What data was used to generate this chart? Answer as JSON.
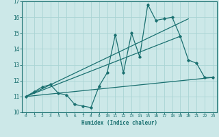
{
  "xlabel": "Humidex (Indice chaleur)",
  "bg_color": "#cce8e8",
  "line_color": "#1a7070",
  "grid_color": "#aad4d4",
  "xlim": [
    -0.5,
    23.5
  ],
  "ylim": [
    10,
    17
  ],
  "xticks": [
    0,
    1,
    2,
    3,
    4,
    5,
    6,
    7,
    8,
    9,
    10,
    11,
    12,
    13,
    14,
    15,
    16,
    17,
    18,
    19,
    20,
    21,
    22,
    23
  ],
  "yticks": [
    10,
    11,
    12,
    13,
    14,
    15,
    16,
    17
  ],
  "curve_x": [
    0,
    1,
    2,
    3,
    4,
    5,
    6,
    7,
    8,
    9,
    10,
    11,
    12,
    13,
    14,
    15,
    16,
    17,
    18,
    19,
    20,
    21,
    22,
    23
  ],
  "curve_y": [
    11.0,
    11.3,
    11.6,
    11.75,
    11.2,
    11.1,
    10.5,
    10.4,
    10.3,
    11.65,
    12.5,
    14.9,
    12.5,
    15.0,
    13.5,
    16.8,
    15.8,
    15.9,
    16.0,
    14.8,
    13.3,
    13.1,
    12.2,
    12.2
  ],
  "line1_x": [
    0,
    23
  ],
  "line1_y": [
    11.0,
    12.2
  ],
  "line2_x": [
    0,
    20
  ],
  "line2_y": [
    11.0,
    15.9
  ],
  "line3_x": [
    0,
    19
  ],
  "line3_y": [
    11.0,
    14.8
  ]
}
